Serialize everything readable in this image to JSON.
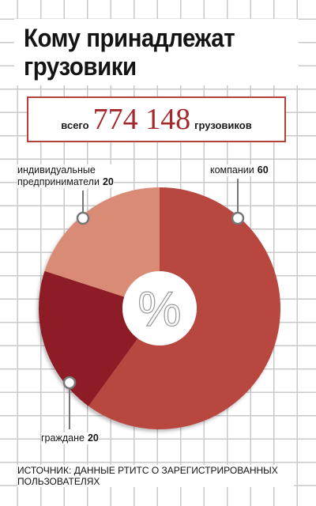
{
  "title": [
    "Кому принадлежат",
    "грузовики"
  ],
  "total": {
    "prefix": "всего",
    "value": "774 148",
    "suffix": "грузовиков"
  },
  "center_symbol": "%",
  "source": "ИСТОЧНИК: ДАННЫЕ РТИТС О ЗАРЕГИСТРИРОВАННЫХ ПОЛЬЗОВАТЕЛЯХ",
  "labels": {
    "individual": {
      "line1": "индивидуальные",
      "line2": "предприниматели",
      "value": "20"
    },
    "company": {
      "text": "компании",
      "value": "60"
    },
    "citizens": {
      "text": "граждане",
      "value": "20"
    }
  },
  "colors": {
    "company": "#b8463f",
    "individual": "#d98b76",
    "citizens": "#8e1a25",
    "accent": "#b5403a"
  },
  "chart_data": {
    "type": "pie",
    "variant": "donut",
    "categories": [
      "компании",
      "индивидуальные предприниматели",
      "граждане"
    ],
    "values": [
      60,
      20,
      20
    ],
    "unit": "%"
  }
}
